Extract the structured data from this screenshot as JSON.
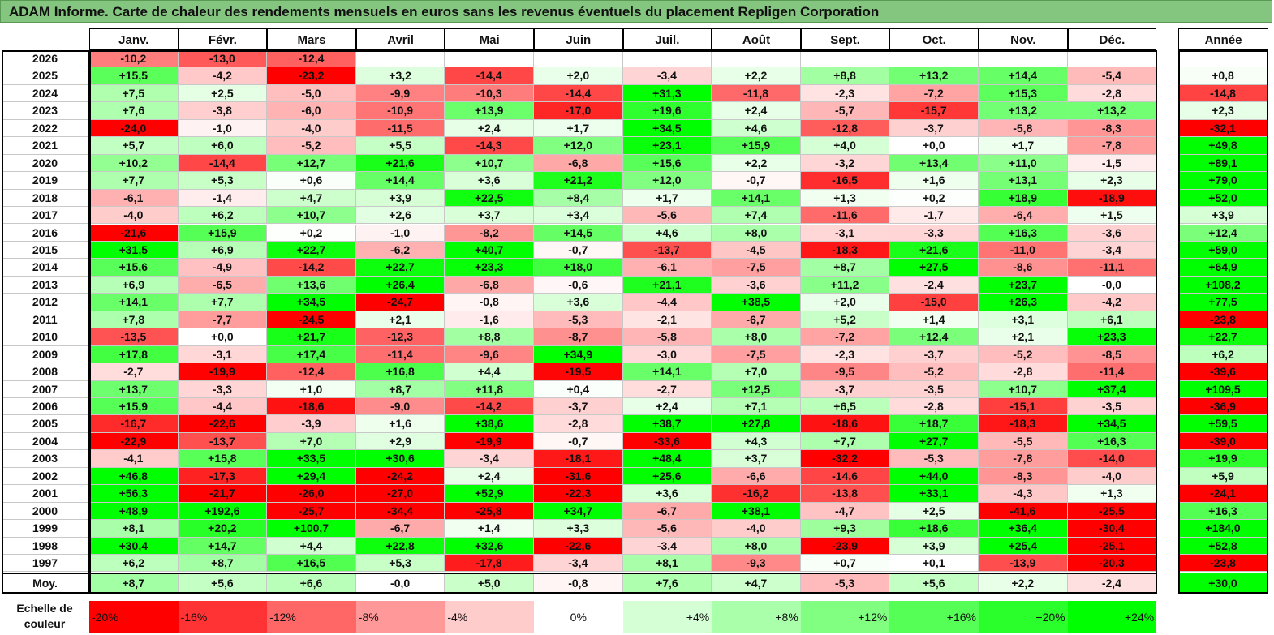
{
  "title": "ADAM Informe. Carte de chaleur des rendements mensuels en euros sans les revenus éventuels du placement Repligen Corporation",
  "chart_data": {
    "type": "heatmap",
    "title": "ADAM Informe. Carte de chaleur des rendements mensuels en euros sans les revenus éventuels du placement Repligen Corporation",
    "columns": [
      "Janv.",
      "Févr.",
      "Mars",
      "Avril",
      "Mai",
      "Juin",
      "Juil.",
      "Août",
      "Sept.",
      "Oct.",
      "Nov.",
      "Déc."
    ],
    "year_column": "Année",
    "rows": [
      {
        "year": "2026",
        "values": [
          "-10,2",
          "-13,0",
          "-12,4",
          "",
          "",
          "",
          "",
          "",
          "",
          "",
          "",
          ""
        ],
        "annual": ""
      },
      {
        "year": "2025",
        "values": [
          "+15,5",
          "-4,2",
          "-23,2",
          "+3,2",
          "-14,4",
          "+2,0",
          "-3,4",
          "+2,2",
          "+8,8",
          "+13,2",
          "+14,4",
          "-5,4"
        ],
        "annual": "+0,8"
      },
      {
        "year": "2024",
        "values": [
          "+7,5",
          "+2,5",
          "-5,0",
          "-9,9",
          "-10,3",
          "-14,4",
          "+31,3",
          "-11,8",
          "-2,3",
          "-7,2",
          "+15,3",
          "-2,8"
        ],
        "annual": "-14,8"
      },
      {
        "year": "2023",
        "values": [
          "+7,6",
          "-3,8",
          "-6,0",
          "-10,9",
          "+13,9",
          "-17,0",
          "+19,6",
          "+2,4",
          "-5,7",
          "-15,7",
          "+13,2",
          "+13,2"
        ],
        "annual": "+2,3"
      },
      {
        "year": "2022",
        "values": [
          "-24,0",
          "-1,0",
          "-4,0",
          "-11,5",
          "+2,4",
          "+1,7",
          "+34,5",
          "+4,6",
          "-12,8",
          "-3,7",
          "-5,8",
          "-8,3"
        ],
        "annual": "-32,1"
      },
      {
        "year": "2021",
        "values": [
          "+5,7",
          "+6,0",
          "-5,2",
          "+5,5",
          "-14,3",
          "+12,0",
          "+23,1",
          "+15,9",
          "+4,0",
          "+0,0",
          "+1,7",
          "-7,8"
        ],
        "annual": "+49,8"
      },
      {
        "year": "2020",
        "values": [
          "+10,2",
          "-14,4",
          "+12,7",
          "+21,6",
          "+10,7",
          "-6,8",
          "+15,6",
          "+2,2",
          "-3,2",
          "+13,4",
          "+11,0",
          "-1,5"
        ],
        "annual": "+89,1"
      },
      {
        "year": "2019",
        "values": [
          "+7,7",
          "+5,3",
          "+0,6",
          "+14,4",
          "+3,6",
          "+21,2",
          "+12,0",
          "-0,7",
          "-16,5",
          "+1,6",
          "+13,1",
          "+2,3"
        ],
        "annual": "+79,0"
      },
      {
        "year": "2018",
        "values": [
          "-6,1",
          "-1,4",
          "+4,7",
          "+3,9",
          "+22,5",
          "+8,4",
          "+1,7",
          "+14,1",
          "+1,3",
          "+0,2",
          "+18,9",
          "-18,9"
        ],
        "annual": "+52,0"
      },
      {
        "year": "2017",
        "values": [
          "-4,0",
          "+6,2",
          "+10,7",
          "+2,6",
          "+3,7",
          "+3,4",
          "-5,6",
          "+7,4",
          "-11,6",
          "-1,7",
          "-6,4",
          "+1,5"
        ],
        "annual": "+3,9"
      },
      {
        "year": "2016",
        "values": [
          "-21,6",
          "+15,9",
          "+0,2",
          "-1,0",
          "-8,2",
          "+14,5",
          "+4,6",
          "+8,0",
          "-3,1",
          "-3,3",
          "+16,3",
          "-3,6"
        ],
        "annual": "+12,4"
      },
      {
        "year": "2015",
        "values": [
          "+31,5",
          "+6,9",
          "+22,7",
          "-6,2",
          "+40,7",
          "-0,7",
          "-13,7",
          "-4,5",
          "-18,3",
          "+21,6",
          "-11,0",
          "-3,4"
        ],
        "annual": "+59,0"
      },
      {
        "year": "2014",
        "values": [
          "+15,6",
          "-4,9",
          "-14,2",
          "+22,7",
          "+23,3",
          "+18,0",
          "-6,1",
          "-7,5",
          "+8,7",
          "+27,5",
          "-8,6",
          "-11,1"
        ],
        "annual": "+64,9"
      },
      {
        "year": "2013",
        "values": [
          "+6,9",
          "-6,5",
          "+13,6",
          "+26,4",
          "-6,8",
          "-0,6",
          "+21,1",
          "-3,6",
          "+11,2",
          "-2,4",
          "+23,7",
          "-0,0"
        ],
        "annual": "+108,2"
      },
      {
        "year": "2012",
        "values": [
          "+14,1",
          "+7,7",
          "+34,5",
          "-24,7",
          "-0,8",
          "+3,6",
          "-4,4",
          "+38,5",
          "+2,0",
          "-15,0",
          "+26,3",
          "-4,2"
        ],
        "annual": "+77,5"
      },
      {
        "year": "2011",
        "values": [
          "+7,8",
          "-7,7",
          "-24,5",
          "+2,1",
          "-1,6",
          "-5,3",
          "-2,1",
          "-6,7",
          "+5,2",
          "+1,4",
          "+3,1",
          "+6,1"
        ],
        "annual": "-23,8"
      },
      {
        "year": "2010",
        "values": [
          "-13,5",
          "+0,0",
          "+21,7",
          "-12,3",
          "+8,8",
          "-8,7",
          "-5,8",
          "+8,0",
          "-7,2",
          "+12,4",
          "+2,1",
          "+23,3"
        ],
        "annual": "+22,7"
      },
      {
        "year": "2009",
        "values": [
          "+17,8",
          "-3,1",
          "+17,4",
          "-11,4",
          "-9,6",
          "+34,9",
          "-3,0",
          "-7,5",
          "-2,3",
          "-3,7",
          "-5,2",
          "-8,5"
        ],
        "annual": "+6,2"
      },
      {
        "year": "2008",
        "values": [
          "-2,7",
          "-19,9",
          "-12,4",
          "+16,8",
          "+4,4",
          "-19,5",
          "+14,1",
          "+7,0",
          "-9,5",
          "-5,2",
          "-2,8",
          "-11,4"
        ],
        "annual": "-39,6"
      },
      {
        "year": "2007",
        "values": [
          "+13,7",
          "-3,3",
          "+1,0",
          "+8,7",
          "+11,8",
          "+0,4",
          "-2,7",
          "+12,5",
          "-3,7",
          "-3,5",
          "+10,7",
          "+37,4"
        ],
        "annual": "+109,5"
      },
      {
        "year": "2006",
        "values": [
          "+15,9",
          "-4,4",
          "-18,6",
          "-9,0",
          "-14,2",
          "-3,7",
          "+2,4",
          "+7,1",
          "+6,5",
          "-2,8",
          "-15,1",
          "-3,5"
        ],
        "annual": "-36,9"
      },
      {
        "year": "2005",
        "values": [
          "-16,7",
          "-22,6",
          "-3,9",
          "+1,6",
          "+38,6",
          "-2,8",
          "+38,7",
          "+27,8",
          "-18,6",
          "+18,7",
          "-18,3",
          "+34,5"
        ],
        "annual": "+59,5"
      },
      {
        "year": "2004",
        "values": [
          "-22,9",
          "-13,7",
          "+7,0",
          "+2,9",
          "-19,9",
          "-0,7",
          "-33,6",
          "+4,3",
          "+7,7",
          "+27,7",
          "-5,5",
          "+16,3"
        ],
        "annual": "-39,0"
      },
      {
        "year": "2003",
        "values": [
          "-4,1",
          "+15,8",
          "+33,5",
          "+30,6",
          "-3,4",
          "-18,1",
          "+48,4",
          "+3,7",
          "-32,2",
          "-5,3",
          "-7,8",
          "-14,0"
        ],
        "annual": "+19,9"
      },
      {
        "year": "2002",
        "values": [
          "+46,8",
          "-17,3",
          "+29,4",
          "-24,2",
          "+2,4",
          "-31,6",
          "+25,6",
          "-6,6",
          "-14,6",
          "+44,0",
          "-8,3",
          "-4,0"
        ],
        "annual": "+5,9"
      },
      {
        "year": "2001",
        "values": [
          "+56,3",
          "-21,7",
          "-26,0",
          "-27,0",
          "+52,9",
          "-22,3",
          "+3,6",
          "-16,2",
          "-13,8",
          "+33,1",
          "-4,3",
          "+1,3"
        ],
        "annual": "-24,1"
      },
      {
        "year": "2000",
        "values": [
          "+48,9",
          "+192,6",
          "-25,7",
          "-34,4",
          "-25,8",
          "+34,7",
          "-6,7",
          "+38,1",
          "-4,7",
          "+2,5",
          "-41,6",
          "-25,5"
        ],
        "annual": "+16,3"
      },
      {
        "year": "1999",
        "values": [
          "+8,1",
          "+20,2",
          "+100,7",
          "-6,7",
          "+1,4",
          "+3,3",
          "-5,6",
          "-4,0",
          "+9,3",
          "+18,6",
          "+36,4",
          "-30,4"
        ],
        "annual": "+184,0"
      },
      {
        "year": "1998",
        "values": [
          "+30,4",
          "+14,7",
          "+4,4",
          "+22,8",
          "+32,6",
          "-22,6",
          "-3,4",
          "+8,0",
          "-23,9",
          "+3,9",
          "+25,4",
          "-25,1"
        ],
        "annual": "+52,8"
      },
      {
        "year": "1997",
        "values": [
          "+6,2",
          "+8,7",
          "+16,5",
          "+5,3",
          "-17,8",
          "-3,4",
          "+8,1",
          "-9,3",
          "+0,7",
          "+0,1",
          "-13,9",
          "-20,3"
        ],
        "annual": "-23,8"
      }
    ],
    "average": {
      "label": "Moy.",
      "values": [
        "+8,7",
        "+5,6",
        "+6,6",
        "-0,0",
        "+5,0",
        "-0,8",
        "+7,6",
        "+4,7",
        "-5,3",
        "+5,6",
        "+2,2",
        "-2,4"
      ],
      "annual": "+30,0"
    },
    "scale": {
      "label_line1": "Echelle de",
      "label_line2": "couleur",
      "stops": [
        {
          "label": "-20%",
          "value": -20,
          "color": "#ff0000"
        },
        {
          "label": "-16%",
          "value": -16,
          "color": "#ff3333"
        },
        {
          "label": "-12%",
          "value": -12,
          "color": "#ff6666"
        },
        {
          "label": "-8%",
          "value": -8,
          "color": "#ff9999"
        },
        {
          "label": "-4%",
          "value": -4,
          "color": "#ffcccc"
        },
        {
          "label": "0%",
          "value": 0,
          "color": "#ffffff"
        },
        {
          "label": "+4%",
          "value": 4,
          "color": "#d5ffd5"
        },
        {
          "label": "+8%",
          "value": 8,
          "color": "#aaffaa"
        },
        {
          "label": "+12%",
          "value": 12,
          "color": "#80ff80"
        },
        {
          "label": "+16%",
          "value": 16,
          "color": "#55ff55"
        },
        {
          "label": "+20%",
          "value": 20,
          "color": "#2bff2b"
        },
        {
          "label": "+24%",
          "value": 24,
          "color": "#00ff00"
        }
      ]
    },
    "colors": {
      "negative_max": "#ff0000",
      "neutral": "#ffffff",
      "positive_max": "#00ff00",
      "title_bg": "#84c57f"
    }
  }
}
